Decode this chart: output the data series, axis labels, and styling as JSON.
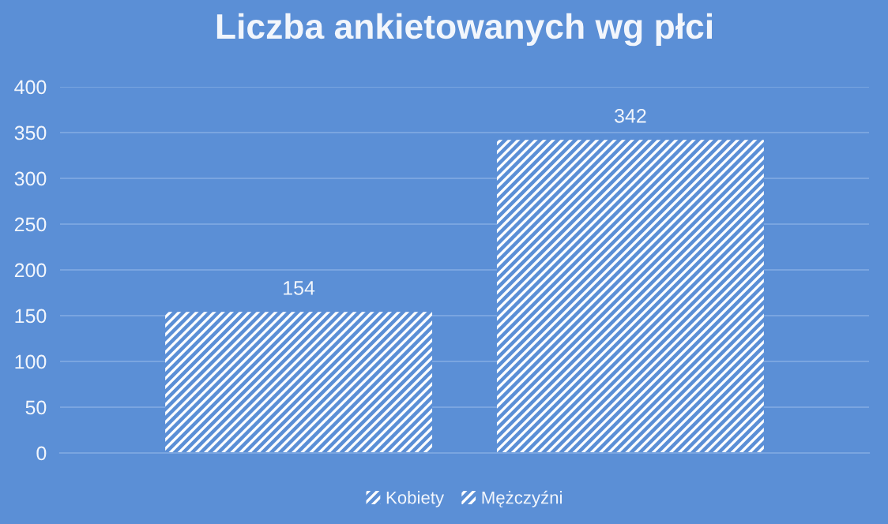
{
  "chart_data": {
    "type": "bar",
    "title": "Liczba ankietowanych wg płci",
    "categories": [
      null
    ],
    "series": [
      {
        "name": "Kobiety",
        "color": "#ffffff",
        "values": [
          154
        ]
      },
      {
        "name": "Mężczyźni",
        "color": "#ffffff",
        "values": [
          342
        ]
      }
    ],
    "ylim": [
      0,
      400
    ],
    "yticks": [
      0,
      50,
      100,
      150,
      200,
      250,
      300,
      350,
      400
    ],
    "grid": "y",
    "legend": "bottom",
    "data_labels": true
  }
}
